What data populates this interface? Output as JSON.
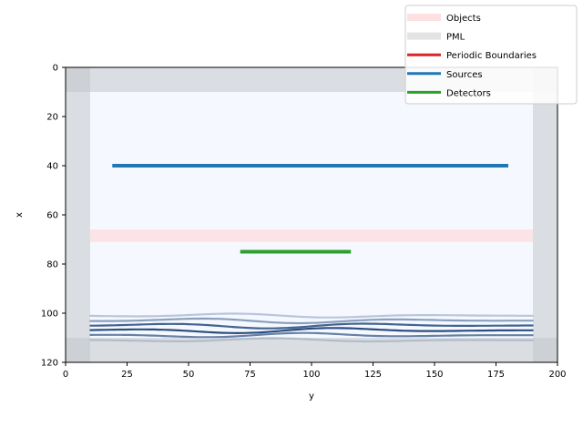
{
  "chart_data": {
    "type": "heatmap",
    "title": "",
    "xlabel": "y",
    "ylabel": "x",
    "xlim": [
      0,
      200
    ],
    "ylim": [
      120,
      0
    ],
    "x_ticks": [
      0,
      25,
      50,
      75,
      100,
      125,
      150,
      175,
      200
    ],
    "y_ticks": [
      0,
      20,
      40,
      60,
      80,
      100,
      120
    ],
    "grid": false,
    "legend_placement": "top-right (outside axes)",
    "legend": [
      {
        "label": "Objects",
        "color": "#fde0e2",
        "kind": "patch"
      },
      {
        "label": "PML",
        "color": "#e3e3e3",
        "kind": "patch"
      },
      {
        "label": "Periodic Boundaries",
        "color": "#d62728",
        "kind": "line"
      },
      {
        "label": "Sources",
        "color": "#1f77b4",
        "kind": "line"
      },
      {
        "label": "Detectors",
        "color": "#2ca02c",
        "kind": "line"
      }
    ],
    "pml": {
      "thickness": 10,
      "color": "#e3e3e3"
    },
    "objects": [
      {
        "name": "Objects",
        "y_range": [
          10,
          190
        ],
        "x_range": [
          66,
          71
        ],
        "color": "#fde0e2"
      }
    ],
    "sources": [
      {
        "name": "Sources",
        "y_range": [
          19,
          180
        ],
        "x": 40,
        "color": "#1f77b4"
      }
    ],
    "detectors": [
      {
        "name": "Detectors",
        "y_range": [
          71,
          116
        ],
        "x": 75,
        "color": "#2ca02c"
      }
    ],
    "field": {
      "colormap": "Blues",
      "background_value": 0.05,
      "band_x_range": [
        95,
        112
      ],
      "peak_y": 85
    }
  }
}
